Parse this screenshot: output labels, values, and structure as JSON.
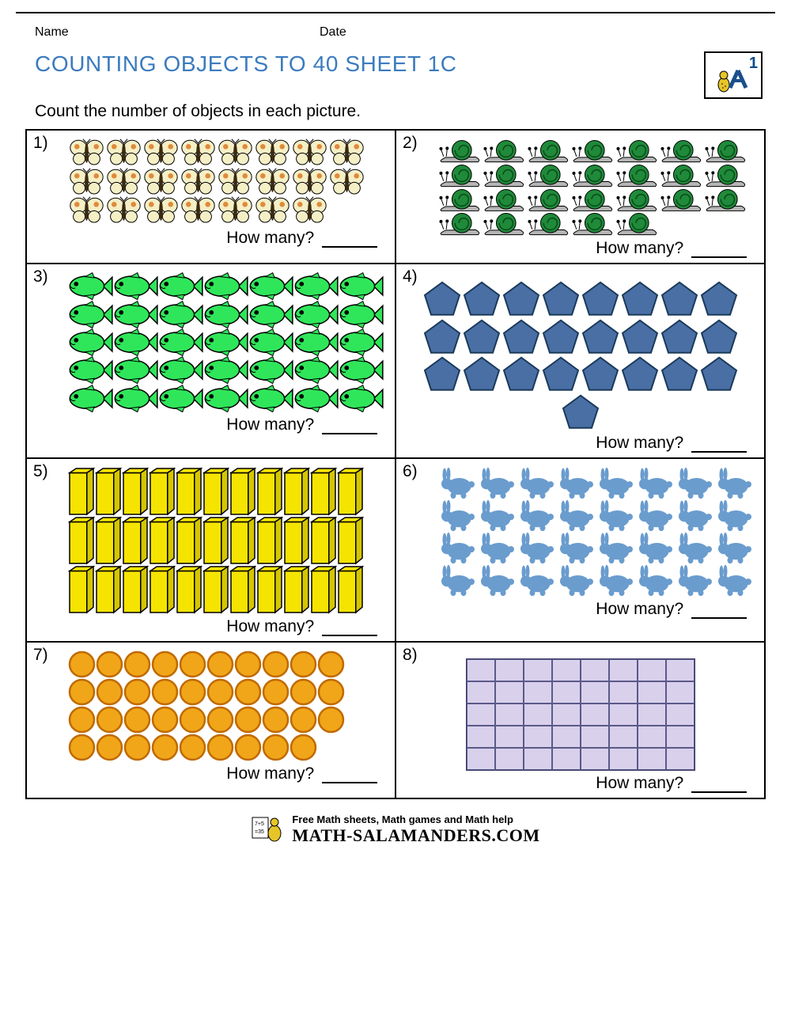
{
  "header": {
    "name_label": "Name",
    "date_label": "Date"
  },
  "title": "COUNTING OBJECTS TO 40 SHEET 1C",
  "grade": "1",
  "instruction": "Count the number of objects in each picture.",
  "answer_label": "How many?",
  "colors": {
    "title": "#3b7bbf",
    "butterfly_body": "#f5efc6",
    "butterfly_accent": "#e08a3a",
    "snail_shell": "#1f8a3a",
    "snail_body": "#b5b5b5",
    "fish": "#2fe65a",
    "pentagon": "#4a6fa5",
    "cube": "#f5e400",
    "rabbit": "#6a9cce",
    "circle_fill": "#f0a618",
    "circle_stroke": "#c06a00",
    "square_fill": "#d9d0ec",
    "square_stroke": "#5a5a88"
  },
  "questions": [
    {
      "n": "1)",
      "type": "butterfly",
      "rows": [
        8,
        8,
        7
      ],
      "size": 47
    },
    {
      "n": "2)",
      "type": "snail",
      "rows": [
        7,
        7,
        7,
        5
      ],
      "size": 56
    },
    {
      "n": "3)",
      "type": "fish",
      "rows": [
        7,
        7,
        7,
        7,
        7
      ],
      "size": 57
    },
    {
      "n": "4)",
      "type": "pentagon",
      "rows": [
        8,
        8,
        8,
        1
      ],
      "size": 50
    },
    {
      "n": "5)",
      "type": "cube",
      "rows": [
        11,
        11,
        11
      ],
      "size": 34,
      "h": 62
    },
    {
      "n": "6)",
      "type": "rabbit",
      "rows": [
        8,
        8,
        8,
        8
      ],
      "size": 50
    },
    {
      "n": "7)",
      "type": "circle",
      "rows": [
        10,
        10,
        10,
        9
      ],
      "size": 35
    },
    {
      "n": "8)",
      "type": "squares",
      "grid_rows": 5,
      "grid_cols": 8
    }
  ],
  "footer": {
    "line1": "Free Math sheets, Math games and Math help",
    "site": "Math-Salamanders.com"
  }
}
